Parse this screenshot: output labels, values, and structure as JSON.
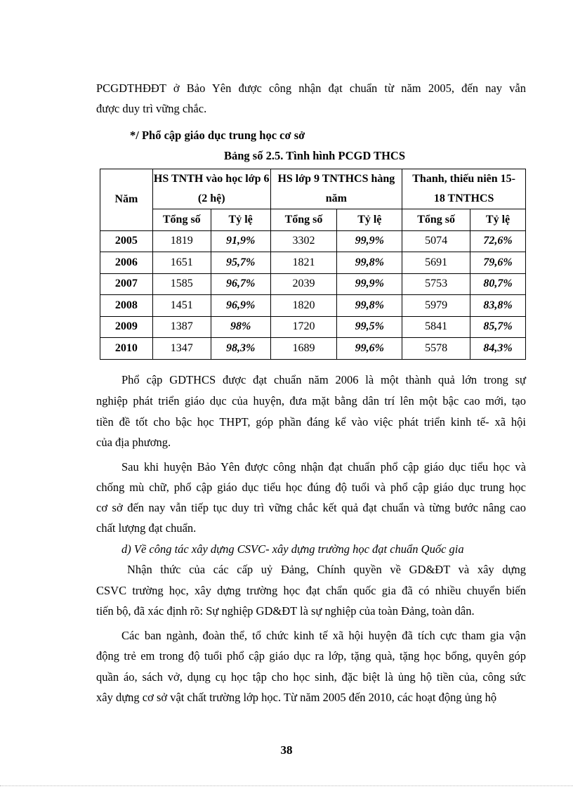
{
  "paragraphs": {
    "p1": [
      "PCGDTHĐĐT  ở Bảo Yên được công nhận đạt chuẩn từ năm 2005, đến nay vẫn",
      "được duy trì vững chắc."
    ],
    "heading": "*/ Phổ cập giáo dục trung học cơ sở",
    "p2": [
      "Phổ cập GDTHCS  được đạt chuẩn năm 2006 là một thành quả lớn trong sự",
      "nghiệp phát triển giáo dục của huyện, đưa mặt bằng dân trí lên một bậc cao mới, tạo",
      "tiền đề tốt cho bậc học THPT,  góp phần đáng kể vào việc phát triển kinh tế- xã hội",
      "của địa phương."
    ],
    "p3": [
      "Sau khi huyện Bảo Yên được công nhận đạt chuẩn phổ cập giáo dục tiểu học và",
      "chống mù chữ, phổ cập giáo dục tiểu học đúng độ tuổi và phổ cập giáo dục trung học",
      "cơ sở đến nay vẫn tiếp tục duy trì vững chắc kết quả đạt chuẩn  và từng bước nâng cao",
      "chất lượng đạt chuẩn."
    ],
    "subheading": "d) Về công tác xây dựng CSVC- xây dựng trường học đạt chuẩn Quốc gia",
    "p4": [
      "Nhận thức của các cấp uỷ Đảng, Chính quyền về GD&ĐT và xây dựng",
      "CSVC trường học, xây dựng trường học đạt chẩn quốc gia đã có nhiều chuyển biến",
      "tiến bộ, đã xác định rõ: Sự nghiệp GD&ĐT  là sự nghiệp của toàn Đảng, toàn dân."
    ],
    "p5": [
      "Các ban ngành, đoàn thể, tổ chức kinh tế xã hội huyện đã tích cực tham gia vận",
      "động trẻ em trong độ tuổi phổ cập giáo dục ra lớp, tặng quà, tặng học bổng, quyên góp",
      "quần áo, sách vở, dụng cụ học tập cho học sinh, đặc biệt là ủng hộ tiền của, công sức",
      "xây dựng cơ sở vật chất trường lớp học. Từ năm 2005 đến 2010, các hoạt động ủng hộ"
    ]
  },
  "table": {
    "caption": "Bảng số 2.5. Tình hình  PCGD THCS",
    "year_header": "Năm",
    "groups": [
      "HS  TNTH  vào học lớp 6 (2 hệ)",
      "HS lớp 9 TNTHCS  hàng năm",
      "Thanh,  thiếu niên 15-18 TNTHCS"
    ],
    "sub": [
      "Tổng số",
      "Tỷ lệ"
    ],
    "rows": [
      [
        "2005",
        "1819",
        "91,9%",
        "3302",
        "99,9%",
        "5074",
        "72,6%"
      ],
      [
        "2006",
        "1651",
        "95,7%",
        "1821",
        "99,8%",
        "5691",
        "79,6%"
      ],
      [
        "2007",
        "1585",
        "96,7%",
        "2039",
        "99,9%",
        "5753",
        "80,7%"
      ],
      [
        "2008",
        "1451",
        "96,9%",
        "1820",
        "99,8%",
        "5979",
        "83,8%"
      ],
      [
        "2009",
        "1387",
        "98%",
        "1720",
        "99,5%",
        "5841",
        "85,7%"
      ],
      [
        "2010",
        "1347",
        "98,3%",
        "1689",
        "99,6%",
        "5578",
        "84,3%"
      ]
    ]
  },
  "page_number": "38"
}
